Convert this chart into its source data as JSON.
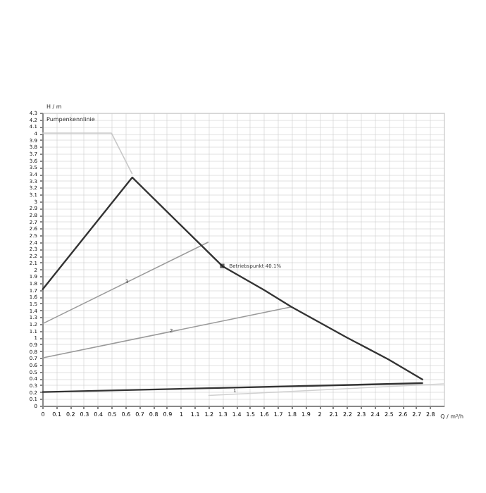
{
  "chart_data": {
    "type": "line",
    "title": "Pumpenkennlinie",
    "xlabel": "Q / m³/h",
    "ylabel": "H / m",
    "xlim": [
      0,
      2.9
    ],
    "ylim": [
      0,
      4.3
    ],
    "xticks": [
      0,
      0.1,
      0.2,
      0.3,
      0.4,
      0.5,
      0.6,
      0.7,
      0.8,
      0.9,
      1,
      1.1,
      1.2,
      1.3,
      1.4,
      1.5,
      1.6,
      1.7,
      1.8,
      1.9,
      2,
      2.1,
      2.2,
      2.3,
      2.4,
      2.5,
      2.6,
      2.7,
      2.8
    ],
    "yticks": [
      0,
      0.1,
      0.2,
      0.3,
      0.4,
      0.5,
      0.6,
      0.7,
      0.8,
      0.9,
      1,
      1.1,
      1.2,
      1.3,
      1.4,
      1.5,
      1.6,
      1.7,
      1.8,
      1.9,
      2,
      2.1,
      2.2,
      2.3,
      2.4,
      2.5,
      2.6,
      2.7,
      2.8,
      2.9,
      3,
      3.1,
      3.2,
      3.3,
      3.4,
      3.5,
      3.6,
      3.7,
      3.8,
      3.9,
      4,
      4.1,
      4.2,
      4.3
    ],
    "grid": true,
    "marker": "none",
    "line_style": "solid",
    "series": [
      {
        "color": "#c8c8c8",
        "x": [
          0,
          0.5,
          0.65
        ],
        "values": [
          4.0,
          4.0,
          3.4
        ]
      },
      {
        "color": "#9a9a9a",
        "x": [
          0,
          1.2
        ],
        "values": [
          1.2,
          2.4
        ]
      },
      {
        "color": "#9a9a9a",
        "x": [
          0,
          1.8
        ],
        "values": [
          0.7,
          1.45
        ]
      },
      {
        "color": "#d0d0d0",
        "x": [
          1.2,
          2.9
        ],
        "values": [
          0.15,
          0.32
        ]
      },
      {
        "color": "#333333",
        "x": [
          0,
          0.65,
          1.0,
          1.3,
          1.6,
          1.8,
          2.2,
          2.5,
          2.75
        ],
        "values": [
          1.7,
          3.35,
          2.65,
          2.05,
          1.7,
          1.45,
          1.0,
          0.68,
          0.38
        ]
      },
      {
        "color": "#333333",
        "x": [
          0,
          2.75
        ],
        "values": [
          0.2,
          0.33
        ]
      },
      {
        "type": "scatter",
        "marker": "square",
        "color": "#222222",
        "x": [
          1.3
        ],
        "values": [
          2.05
        ]
      }
    ],
    "annotations": [
      {
        "text": "Betriebspunkt  40.1%",
        "x": 1.33,
        "y": 2.05
      },
      {
        "text": "3",
        "x": 0.58,
        "y": 1.82
      },
      {
        "text": "2",
        "x": 0.9,
        "y": 1.1
      },
      {
        "text": "1",
        "x": 1.36,
        "y": 0.22
      }
    ]
  }
}
